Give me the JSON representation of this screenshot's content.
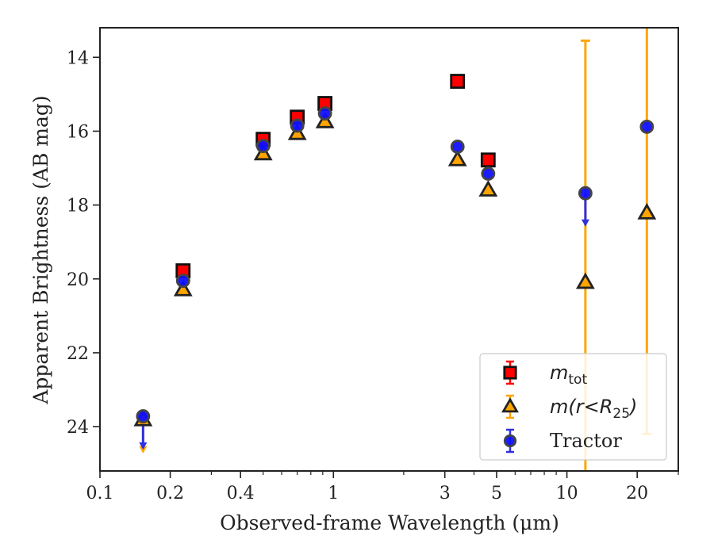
{
  "chart_data": {
    "type": "scatter",
    "title": "",
    "xlabel": "Observed-frame Wavelength (μm)",
    "ylabel": "Apparent Brightness (AB mag)",
    "xscale": "log",
    "xlim": [
      0.1,
      30
    ],
    "ylim": [
      25.2,
      13.2
    ],
    "y_inverted": true,
    "grid": false,
    "legend_position": "lower-right",
    "xticks": [
      {
        "value": 0.1,
        "label": "0.1"
      },
      {
        "value": 0.2,
        "label": "0.2"
      },
      {
        "value": 0.4,
        "label": "0.4"
      },
      {
        "value": 1,
        "label": "1"
      },
      {
        "value": 3,
        "label": "3"
      },
      {
        "value": 5,
        "label": "5"
      },
      {
        "value": 10,
        "label": "10"
      },
      {
        "value": 20,
        "label": "20"
      }
    ],
    "yticks": [
      {
        "value": 14,
        "label": "14"
      },
      {
        "value": 16,
        "label": "16"
      },
      {
        "value": 18,
        "label": "18"
      },
      {
        "value": 20,
        "label": "20"
      },
      {
        "value": 22,
        "label": "22"
      },
      {
        "value": 24,
        "label": "24"
      }
    ],
    "series": [
      {
        "name": "m_tot",
        "legend_main": "m",
        "legend_sub": "tot",
        "legend_tail": "",
        "marker": "square",
        "color": "#ff0000",
        "edgecolor": "#111111",
        "errcolor": "#ff0000",
        "points": [
          {
            "x": 0.227,
            "y": 19.78
          },
          {
            "x": 0.5,
            "y": 16.22
          },
          {
            "x": 0.7,
            "y": 15.62
          },
          {
            "x": 0.92,
            "y": 15.25
          },
          {
            "x": 3.4,
            "y": 14.65
          },
          {
            "x": 4.6,
            "y": 16.78
          }
        ]
      },
      {
        "name": "m(r<R25)",
        "legend_main": "m(r<R",
        "legend_sub": "25",
        "legend_tail": ")",
        "marker": "triangle",
        "color": "#ffa500",
        "edgecolor": "#222222",
        "errcolor": "#ffa500",
        "points": [
          {
            "x": 0.153,
            "y": 23.82,
            "upper_limit": true
          },
          {
            "x": 0.227,
            "y": 20.3
          },
          {
            "x": 0.5,
            "y": 16.62
          },
          {
            "x": 0.7,
            "y": 16.07
          },
          {
            "x": 0.92,
            "y": 15.75
          },
          {
            "x": 3.4,
            "y": 16.78
          },
          {
            "x": 4.6,
            "y": 17.6
          },
          {
            "x": 12.0,
            "y": 20.1,
            "yerr_low": 13.55,
            "yerr_high": 26.5
          },
          {
            "x": 22.0,
            "y": 18.22,
            "yerr_low": 12.9,
            "yerr_high": 24.2
          }
        ]
      },
      {
        "name": "Tractor",
        "legend_main": "Tractor",
        "legend_sub": "",
        "legend_tail": "",
        "marker": "circle",
        "color": "#1010ff",
        "edgecolor": "#444444",
        "errcolor": "#3030e0",
        "points": [
          {
            "x": 0.153,
            "y": 23.72,
            "upper_limit": true
          },
          {
            "x": 0.227,
            "y": 20.05
          },
          {
            "x": 0.5,
            "y": 16.4
          },
          {
            "x": 0.7,
            "y": 15.85
          },
          {
            "x": 0.92,
            "y": 15.52
          },
          {
            "x": 3.4,
            "y": 16.42
          },
          {
            "x": 4.6,
            "y": 17.15
          },
          {
            "x": 12.0,
            "y": 17.68,
            "upper_limit": true
          },
          {
            "x": 22.0,
            "y": 15.88
          }
        ]
      }
    ]
  }
}
